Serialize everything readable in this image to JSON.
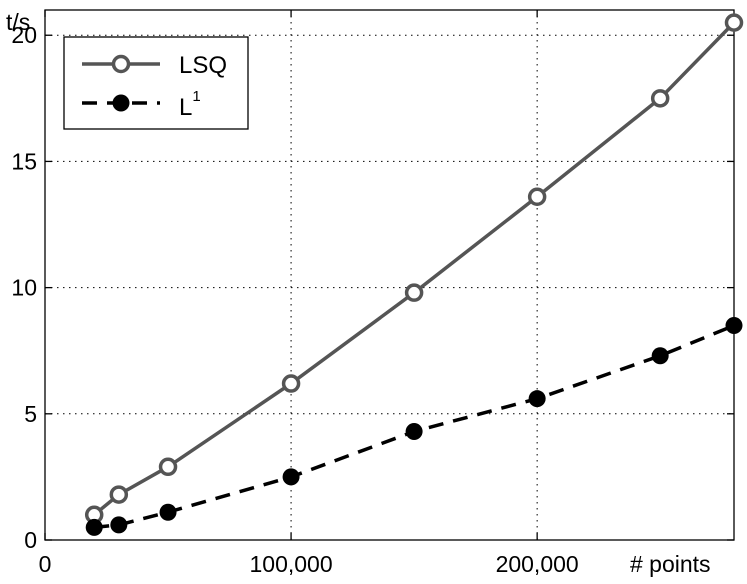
{
  "chart_data": {
    "type": "line",
    "title": "",
    "xlabel": "# points",
    "ylabel": "t/s",
    "xlim": [
      0,
      280000
    ],
    "ylim": [
      0,
      21
    ],
    "grid": true,
    "legend_position": "top-left",
    "x_ticks": [
      0,
      100000,
      200000
    ],
    "x_tick_labels": [
      "0",
      "100,000",
      "200,000"
    ],
    "y_ticks": [
      0,
      5,
      10,
      15,
      20
    ],
    "y_tick_labels": [
      "0",
      "5",
      "10",
      "15",
      "20"
    ],
    "series": [
      {
        "name": "LSQ",
        "marker": "open-circle",
        "line_style": "solid",
        "color": "#555555",
        "x": [
          20000,
          30000,
          50000,
          100000,
          150000,
          200000,
          250000,
          280000
        ],
        "values": [
          1.0,
          1.8,
          2.9,
          6.2,
          9.8,
          13.6,
          17.5,
          20.5
        ]
      },
      {
        "name": "L",
        "name_superscript": "1",
        "marker": "filled-circle",
        "line_style": "dashed",
        "color": "#000000",
        "x": [
          20000,
          30000,
          50000,
          100000,
          150000,
          200000,
          250000,
          280000
        ],
        "values": [
          0.5,
          0.6,
          1.1,
          2.5,
          4.3,
          5.6,
          7.3,
          8.5
        ]
      }
    ]
  }
}
